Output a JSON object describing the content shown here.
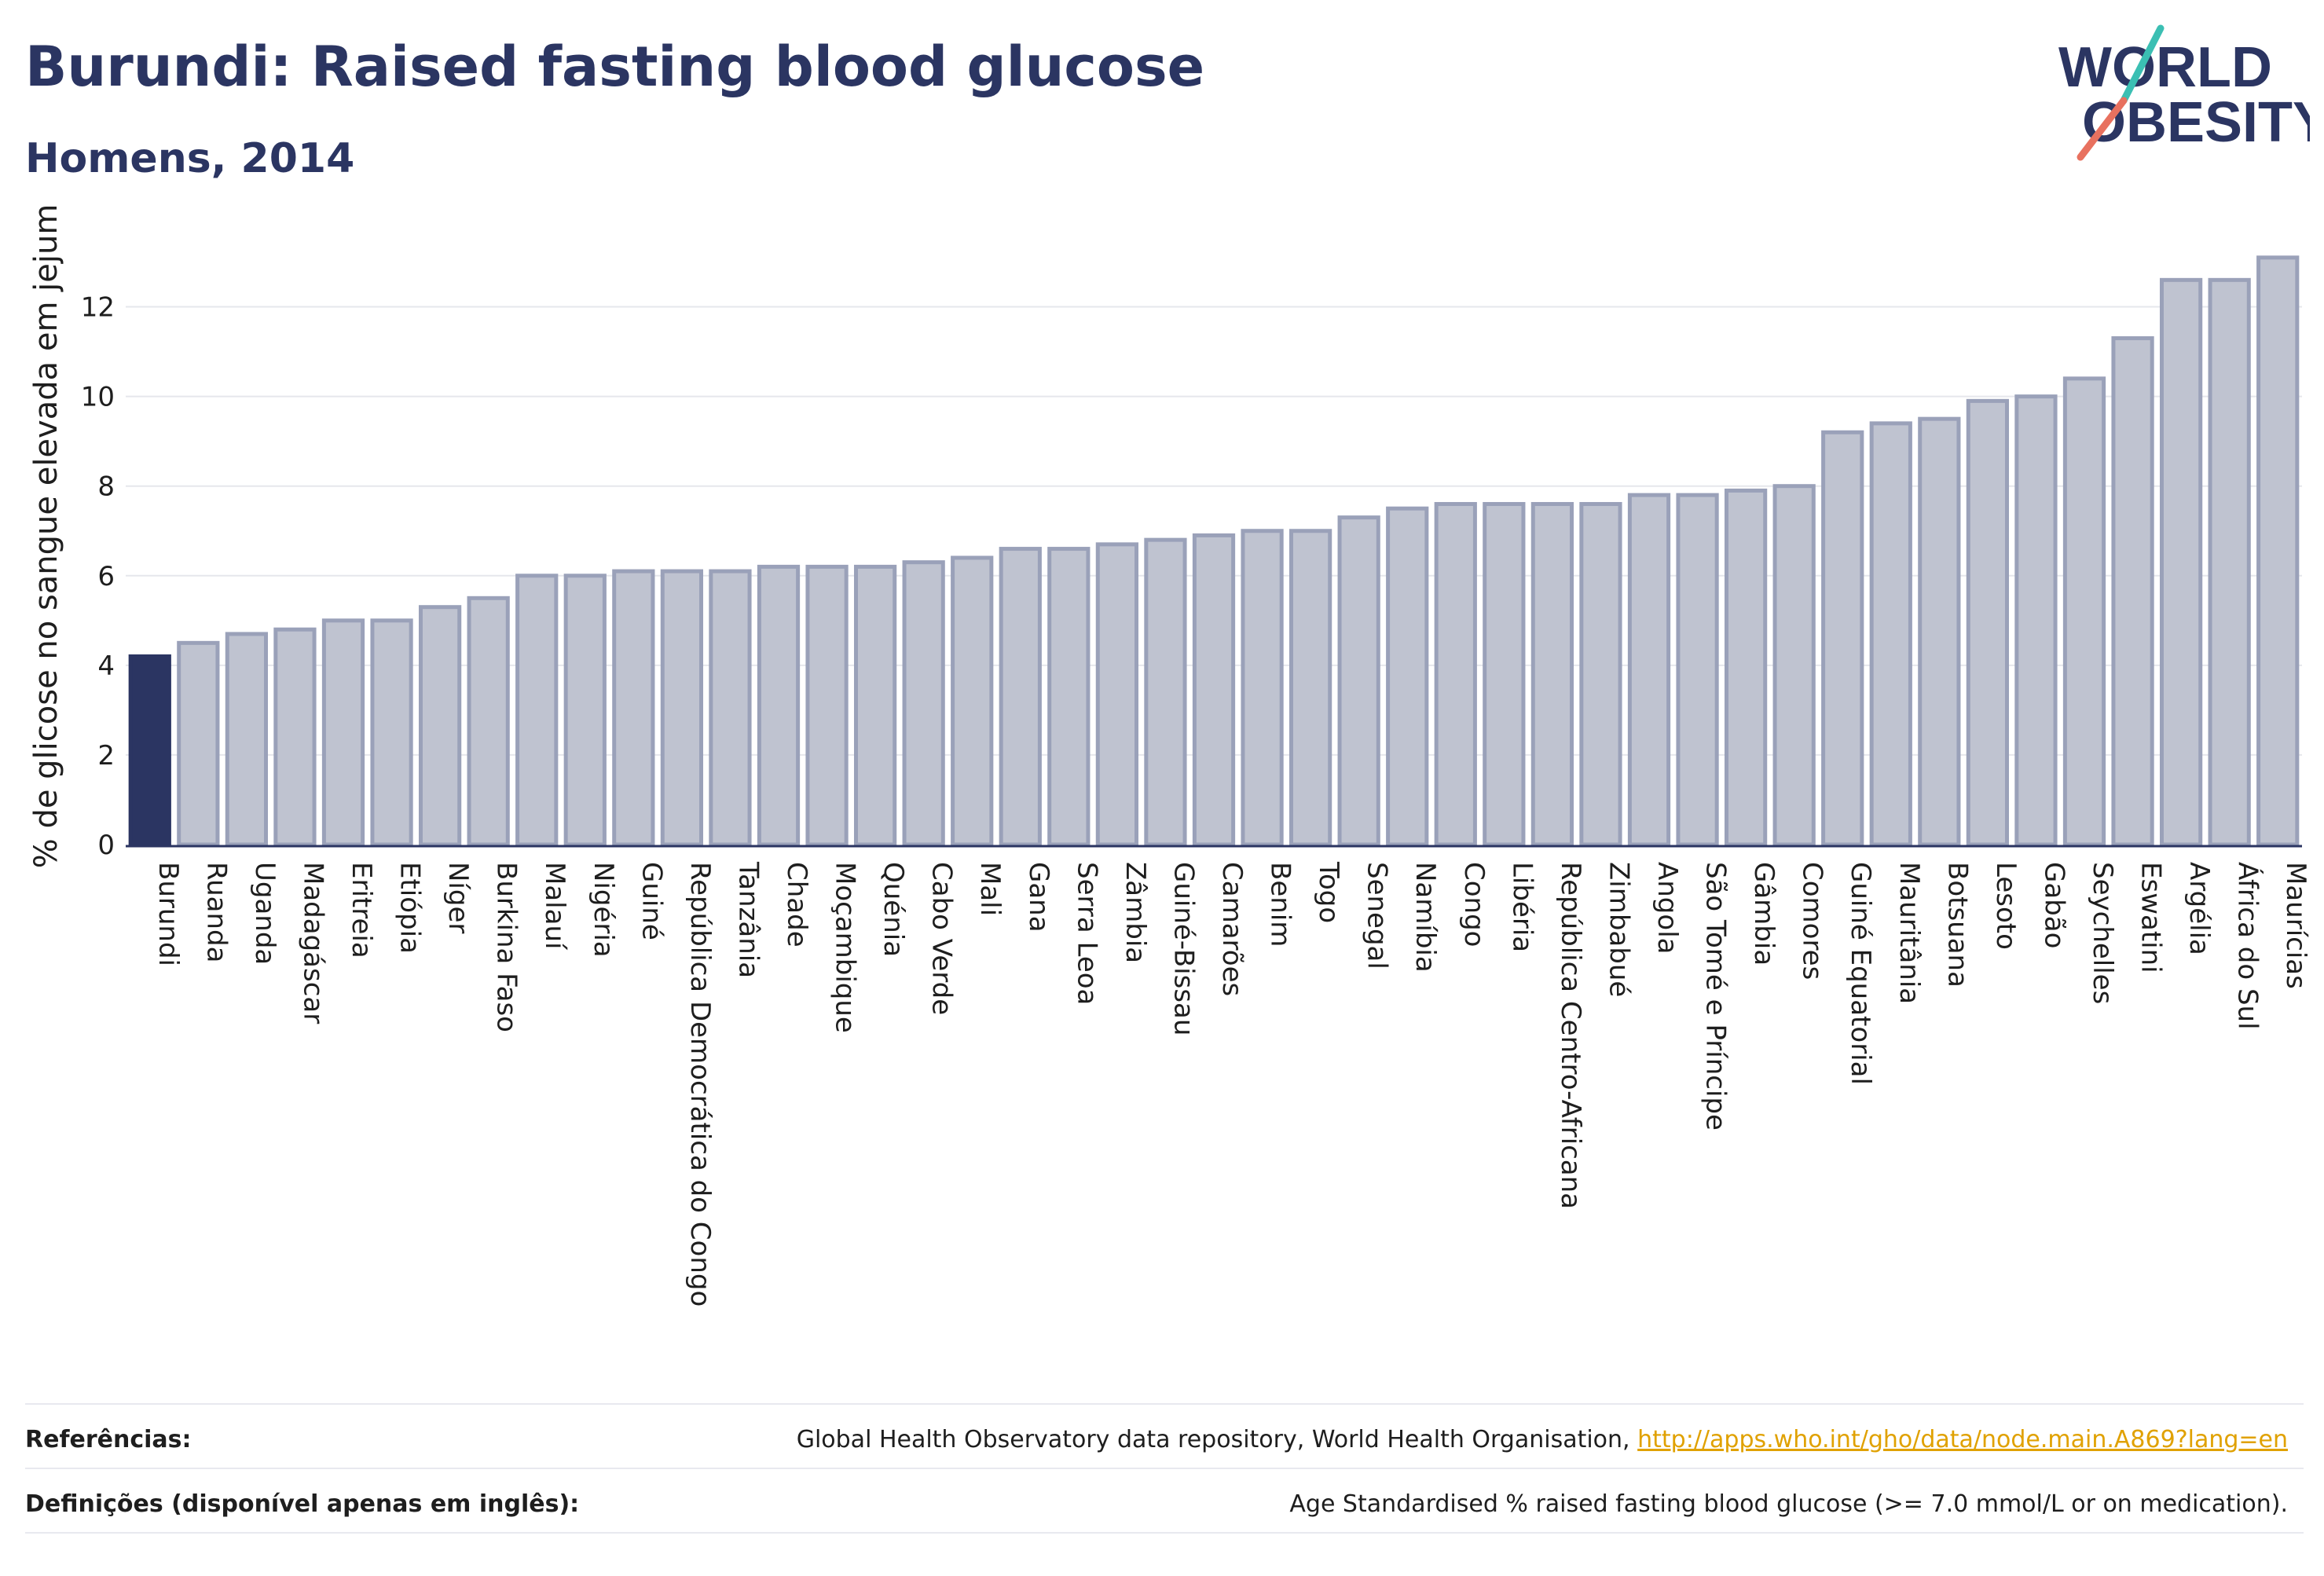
{
  "header": {
    "title": "Burundi: Raised fasting blood glucose",
    "subtitle": "Homens, 2014"
  },
  "logo": {
    "line1": "WORLD",
    "line2": "OBESITY",
    "colors": {
      "text": "#2b3562",
      "slash_teal": "#3bbfb3",
      "slash_coral": "#e8715f"
    }
  },
  "colors": {
    "highlight_bar": "#2b3562",
    "other_bar_fill": "#bfc3d0",
    "other_bar_stroke": "#9aa1b9",
    "grid": "#e6e7ec",
    "axis": "#2b3562"
  },
  "chart_data": {
    "type": "bar",
    "title": "Burundi: Raised fasting blood glucose",
    "subtitle": "Homens, 2014",
    "xlabel": "",
    "ylabel": "% de glicose no sangue elevada em jejum",
    "ylim": [
      0,
      13.5
    ],
    "yticks": [
      0,
      2,
      4,
      6,
      8,
      10,
      12
    ],
    "grid": true,
    "highlight": "Burundi",
    "categories": [
      "Burundi",
      "Ruanda",
      "Uganda",
      "Madagáscar",
      "Eritreia",
      "Etiópia",
      "Níger",
      "Burkina Faso",
      "Malauí",
      "Nigéria",
      "Guiné",
      "República Democrática do Congo",
      "Tanzânia",
      "Chade",
      "Moçambique",
      "Quénia",
      "Cabo Verde",
      "Mali",
      "Gana",
      "Serra Leoa",
      "Zâmbia",
      "Guiné-Bissau",
      "Camarões",
      "Benim",
      "Togo",
      "Senegal",
      "Namíbia",
      "Congo",
      "Libéria",
      "República Centro-Africana",
      "Zimbabué",
      "Angola",
      "São Tomé e Príncipe",
      "Gâmbia",
      "Comores",
      "Guiné Equatorial",
      "Mauritânia",
      "Botsuana",
      "Lesoto",
      "Gabão",
      "Seychelles",
      "Eswatini",
      "Argélia",
      "África do Sul",
      "Maurícias"
    ],
    "values": [
      4.2,
      4.5,
      4.7,
      4.8,
      5.0,
      5.0,
      5.3,
      5.5,
      6.0,
      6.0,
      6.1,
      6.1,
      6.1,
      6.2,
      6.2,
      6.2,
      6.3,
      6.4,
      6.6,
      6.6,
      6.7,
      6.8,
      6.9,
      7.0,
      7.0,
      7.3,
      7.5,
      7.6,
      7.6,
      7.6,
      7.6,
      7.8,
      7.8,
      7.9,
      8.0,
      9.2,
      9.4,
      9.5,
      9.9,
      10.0,
      10.4,
      11.3,
      12.6,
      12.6,
      13.1
    ]
  },
  "footer": {
    "references_label": "Referências:",
    "references_text": "Global Health Observatory data repository, World Health Organisation,",
    "references_link": "http://apps.who.int/gho/data/node.main.A869?lang=en",
    "definitions_label": "Definições (disponível apenas em inglês):",
    "definitions_text": "Age Standardised % raised fasting blood glucose (>= 7.0 mmol/L or on medication)."
  }
}
